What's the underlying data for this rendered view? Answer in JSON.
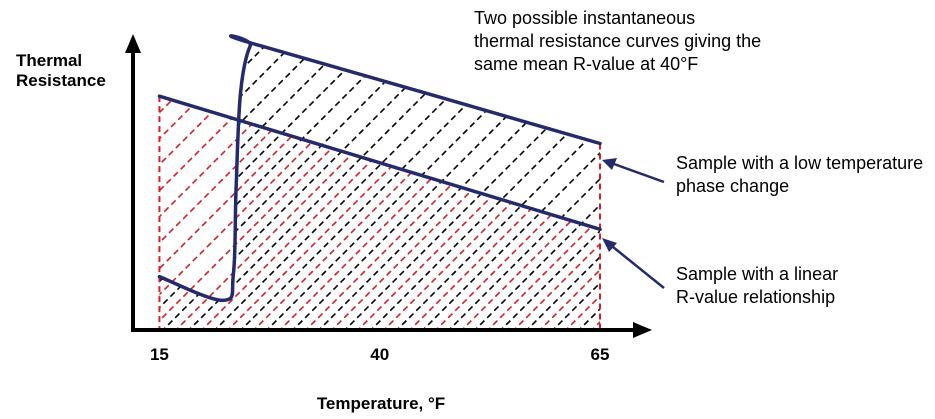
{
  "chart_data": {
    "type": "line",
    "title": "",
    "xlabel": "Temperature, °F",
    "ylabel": "Thermal Resistance",
    "x_ticks": [
      15,
      40,
      65
    ],
    "xlim": [
      12,
      65
    ],
    "ylim": [
      0,
      100
    ],
    "series": [
      {
        "name": "Sample with a low temperature phase change",
        "x": [
          15,
          22.2,
          23.4,
          23.7,
          24.2,
          25.3,
          26.5,
          65
        ],
        "y": [
          18,
          10,
          19,
          48,
          80,
          96,
          96,
          63
        ]
      },
      {
        "name": "Sample with a linear R-value relationship",
        "x": [
          15,
          65
        ],
        "y": [
          79,
          34
        ]
      }
    ],
    "annotations": {
      "note": "Two possible instantaneous thermal resistance curves giving the same mean R-value at 40°F",
      "phase_change_label": "Sample with a low temperature phase change",
      "linear_label": "Sample with a linear R-value relationship"
    },
    "colors": {
      "curves": "#242a6b",
      "linear_hatch": "#d61f26",
      "phase_hatch": "#000000",
      "axis": "#000000"
    }
  }
}
